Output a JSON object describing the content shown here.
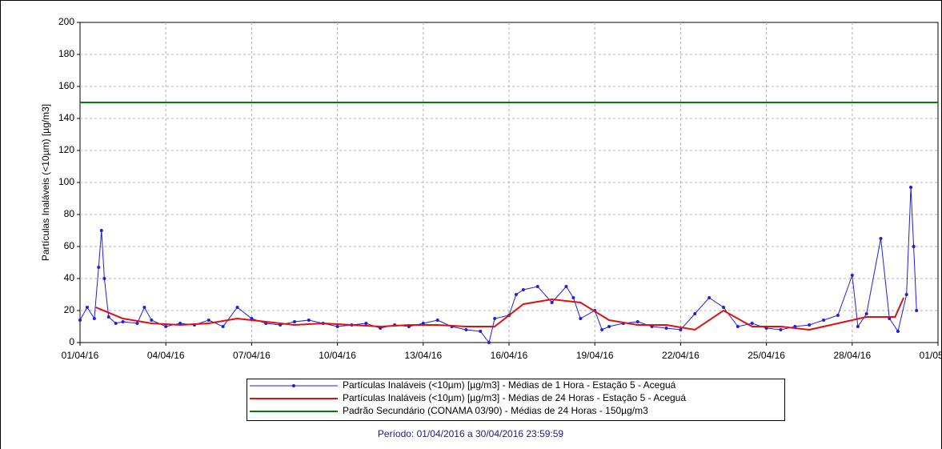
{
  "chart_data": {
    "type": "line",
    "ylabel": "Partículas Inaláveis (<10µm) [µg/m3]",
    "footnote": "Período: 01/04/2016 a 30/04/2016 23:59:59",
    "xlim": [
      0,
      30
    ],
    "xticks": [
      {
        "value": 0,
        "label": "01/04/16"
      },
      {
        "value": 3,
        "label": "04/04/16"
      },
      {
        "value": 6,
        "label": "07/04/16"
      },
      {
        "value": 9,
        "label": "10/04/16"
      },
      {
        "value": 12,
        "label": "13/04/16"
      },
      {
        "value": 15,
        "label": "16/04/16"
      },
      {
        "value": 18,
        "label": "19/04/16"
      },
      {
        "value": 21,
        "label": "22/04/16"
      },
      {
        "value": 24,
        "label": "25/04/16"
      },
      {
        "value": 27,
        "label": "28/04/16"
      },
      {
        "value": 30,
        "label": "01/05/16"
      }
    ],
    "ylim": [
      0,
      200
    ],
    "yticks": [
      0,
      20,
      40,
      60,
      80,
      100,
      120,
      140,
      160,
      180,
      200
    ],
    "grid": true,
    "series": [
      {
        "name": "Partículas Inaláveis (<10µm) [µg/m3] - Médias de 1 Hora - Estação 5 - Aceguá",
        "color": "#1f1fe0",
        "markers": true,
        "x": [
          0,
          0.25,
          0.5,
          0.65,
          0.75,
          0.85,
          1,
          1.25,
          1.5,
          2,
          2.25,
          2.5,
          3,
          3.5,
          4,
          4.5,
          5,
          5.5,
          6,
          6.5,
          7,
          7.5,
          8,
          8.5,
          9,
          9.5,
          10,
          10.5,
          11,
          11.5,
          12,
          12.5,
          13,
          13.5,
          14,
          14.3,
          14.5,
          15,
          15.25,
          15.5,
          16,
          16.5,
          17,
          17.25,
          17.5,
          18,
          18.25,
          18.5,
          19,
          19.5,
          20,
          20.5,
          21,
          21.5,
          22,
          22.5,
          23,
          23.5,
          24,
          24.5,
          25,
          25.5,
          26,
          26.5,
          27,
          27.2,
          27.5,
          28,
          28.3,
          28.6,
          28.9,
          29.05,
          29.15,
          29.25
        ],
        "values": [
          14,
          22,
          15,
          47,
          70,
          40,
          16,
          12,
          13,
          12,
          22,
          14,
          10,
          12,
          11,
          14,
          10,
          22,
          15,
          12,
          11,
          13,
          14,
          12,
          10,
          11,
          12,
          9,
          11,
          10,
          12,
          14,
          10,
          8,
          7,
          0,
          15,
          17,
          30,
          33,
          35,
          25,
          35,
          28,
          15,
          20,
          8,
          10,
          12,
          13,
          10,
          9,
          8,
          18,
          28,
          22,
          10,
          12,
          9,
          8,
          10,
          11,
          14,
          17,
          42,
          10,
          18,
          65,
          15,
          7,
          30,
          97,
          60,
          20
        ]
      },
      {
        "name": "Partículas Inaláveis (<10µm) [µg/m3] - Médias de 24 Horas - Estação 5 - Aceguá",
        "color": "#e01010",
        "markers": false,
        "x": [
          0.55,
          1.5,
          2.5,
          3.5,
          4.5,
          5.5,
          6.5,
          7.5,
          8.5,
          9.5,
          10.5,
          11.5,
          12.5,
          13.5,
          14.5,
          15.5,
          16.5,
          17.5,
          18.5,
          19.5,
          20.5,
          21.5,
          22.5,
          23.5,
          24.5,
          25.5,
          26.5,
          27.5,
          28.5,
          28.8
        ],
        "values": [
          22,
          15,
          12,
          11,
          12,
          15,
          13,
          11,
          12,
          11,
          10,
          11,
          11,
          10,
          10,
          24,
          27,
          25,
          14,
          11,
          11,
          8,
          20,
          10,
          10,
          8,
          12,
          16,
          16,
          28
        ]
      },
      {
        "name": "Padrão Secundário (CONAMA 03/90) - Médias de 24 Horas - 150µg/m3",
        "color": "#008000",
        "markers": false,
        "x": [
          0,
          30
        ],
        "values": [
          150,
          150
        ]
      }
    ]
  }
}
